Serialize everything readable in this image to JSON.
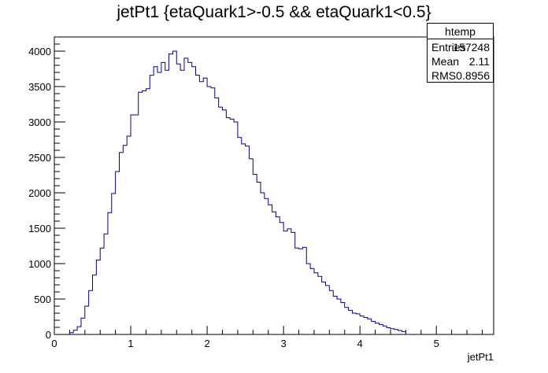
{
  "chart_data": {
    "type": "bar",
    "title": "jetPt1 {etaQuark1>-0.5 && etaQuark1<0.5}",
    "xlabel": "jetPt1",
    "ylabel": "",
    "xlim": [
      0,
      5.75
    ],
    "ylim": [
      0,
      4200
    ],
    "grid": false,
    "x_ticks": [
      "0",
      "1",
      "2",
      "3",
      "4",
      "5"
    ],
    "y_ticks": [
      "0",
      "500",
      "1000",
      "1500",
      "2000",
      "2500",
      "3000",
      "3500",
      "4000"
    ],
    "bin_width": 0.05,
    "bin_start": 0.2,
    "values": [
      25,
      60,
      110,
      230,
      400,
      620,
      840,
      1050,
      1220,
      1420,
      1720,
      1990,
      2300,
      2570,
      2670,
      2800,
      3100,
      3100,
      3420,
      3440,
      3470,
      3660,
      3780,
      3700,
      3840,
      3730,
      3960,
      4000,
      3820,
      3730,
      3900,
      3840,
      3780,
      3660,
      3570,
      3620,
      3500,
      3480,
      3340,
      3210,
      3170,
      3060,
      3040,
      3000,
      2780,
      2690,
      2660,
      2480,
      2260,
      2150,
      2000,
      1920,
      1830,
      1730,
      1660,
      1580,
      1460,
      1490,
      1440,
      1220,
      1210,
      1230,
      1000,
      930,
      870,
      820,
      740,
      690,
      620,
      540,
      500,
      450,
      380,
      340,
      300,
      290,
      260,
      240,
      220,
      185,
      160,
      140,
      120,
      95,
      80,
      70,
      55,
      40,
      0
    ],
    "line_color": "#00008b"
  },
  "stats": {
    "name": "htemp",
    "rows": [
      {
        "label": "Entries",
        "value": "157248"
      },
      {
        "label": "Mean",
        "value": "2.11"
      },
      {
        "label": "RMS",
        "value": "0.8956"
      }
    ]
  }
}
